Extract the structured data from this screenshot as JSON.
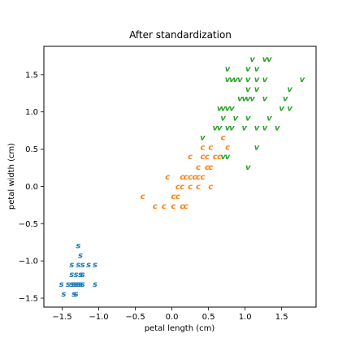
{
  "chart_data": {
    "type": "scatter",
    "title": "After standardization",
    "xlabel": "petal length (cm)",
    "ylabel": "petal width (cm)",
    "xlim": [
      -1.75,
      1.97
    ],
    "ylim": [
      -1.62,
      1.88
    ],
    "xticks": [
      -1.5,
      -1.0,
      -0.5,
      0.0,
      0.5,
      1.0,
      1.5
    ],
    "yticks": [
      -1.5,
      -1.0,
      -0.5,
      0.0,
      0.5,
      1.0,
      1.5
    ],
    "grid": false,
    "series": [
      {
        "marker_label": "s",
        "color": "#1f77b4",
        "points": [
          [
            -1.28,
            -0.79
          ],
          [
            -1.25,
            -0.92
          ],
          [
            -1.37,
            -1.05
          ],
          [
            -1.28,
            -1.05
          ],
          [
            -1.22,
            -1.05
          ],
          [
            -1.14,
            -1.05
          ],
          [
            -1.05,
            -1.05
          ],
          [
            -1.37,
            -1.18
          ],
          [
            -1.31,
            -1.18
          ],
          [
            -1.25,
            -1.18
          ],
          [
            -1.22,
            -1.18
          ],
          [
            -1.51,
            -1.31
          ],
          [
            -1.42,
            -1.31
          ],
          [
            -1.37,
            -1.31
          ],
          [
            -1.34,
            -1.31
          ],
          [
            -1.31,
            -1.31
          ],
          [
            -1.28,
            -1.31
          ],
          [
            -1.25,
            -1.31
          ],
          [
            -1.22,
            -1.31
          ],
          [
            -1.05,
            -1.31
          ],
          [
            -1.48,
            -1.44
          ],
          [
            -1.34,
            -1.44
          ],
          [
            -1.31,
            -1.44
          ]
        ]
      },
      {
        "marker_label": "c",
        "color": "#ff7f0e",
        "points": [
          [
            0.7,
            0.66
          ],
          [
            0.42,
            0.53
          ],
          [
            0.53,
            0.53
          ],
          [
            0.76,
            0.53
          ],
          [
            0.25,
            0.4
          ],
          [
            0.42,
            0.4
          ],
          [
            0.48,
            0.4
          ],
          [
            0.59,
            0.4
          ],
          [
            0.65,
            0.4
          ],
          [
            0.36,
            0.26
          ],
          [
            0.48,
            0.26
          ],
          [
            0.53,
            0.26
          ],
          [
            -0.06,
            0.13
          ],
          [
            0.14,
            0.13
          ],
          [
            0.19,
            0.13
          ],
          [
            0.25,
            0.13
          ],
          [
            0.31,
            0.13
          ],
          [
            0.36,
            0.13
          ],
          [
            0.42,
            0.13
          ],
          [
            0.08,
            0.0
          ],
          [
            0.14,
            0.0
          ],
          [
            0.25,
            0.0
          ],
          [
            0.36,
            0.0
          ],
          [
            0.53,
            0.0
          ],
          [
            -0.4,
            -0.13
          ],
          [
            0.02,
            -0.13
          ],
          [
            0.08,
            -0.13
          ],
          [
            -0.23,
            -0.26
          ],
          [
            -0.11,
            -0.26
          ],
          [
            0.02,
            -0.26
          ],
          [
            0.14,
            -0.26
          ],
          [
            0.19,
            -0.26
          ]
        ]
      },
      {
        "marker_label": "v",
        "color": "#2ca02c",
        "points": [
          [
            1.1,
            1.71
          ],
          [
            1.27,
            1.71
          ],
          [
            1.33,
            1.71
          ],
          [
            0.76,
            1.58
          ],
          [
            1.04,
            1.58
          ],
          [
            1.16,
            1.58
          ],
          [
            1.78,
            1.44
          ],
          [
            0.76,
            1.44
          ],
          [
            0.82,
            1.44
          ],
          [
            0.87,
            1.44
          ],
          [
            0.93,
            1.44
          ],
          [
            1.04,
            1.44
          ],
          [
            1.16,
            1.44
          ],
          [
            1.27,
            1.44
          ],
          [
            1.04,
            1.31
          ],
          [
            1.16,
            1.31
          ],
          [
            1.61,
            1.31
          ],
          [
            0.93,
            1.18
          ],
          [
            0.99,
            1.18
          ],
          [
            1.04,
            1.18
          ],
          [
            1.1,
            1.18
          ],
          [
            1.27,
            1.18
          ],
          [
            1.55,
            1.18
          ],
          [
            0.65,
            1.05
          ],
          [
            0.7,
            1.05
          ],
          [
            0.76,
            1.05
          ],
          [
            0.82,
            1.05
          ],
          [
            1.5,
            1.05
          ],
          [
            1.61,
            1.05
          ],
          [
            0.7,
            0.92
          ],
          [
            0.87,
            0.92
          ],
          [
            1.04,
            0.92
          ],
          [
            1.33,
            0.92
          ],
          [
            0.59,
            0.79
          ],
          [
            0.65,
            0.79
          ],
          [
            0.76,
            0.79
          ],
          [
            0.82,
            0.79
          ],
          [
            0.99,
            0.79
          ],
          [
            1.16,
            0.79
          ],
          [
            1.27,
            0.79
          ],
          [
            1.44,
            0.79
          ],
          [
            0.42,
            0.66
          ],
          [
            1.16,
            0.53
          ],
          [
            0.7,
            0.4
          ],
          [
            0.76,
            0.4
          ],
          [
            1.04,
            0.26
          ]
        ]
      }
    ]
  }
}
